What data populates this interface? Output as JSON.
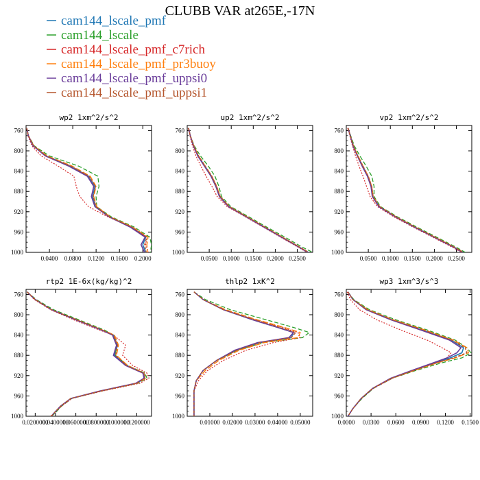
{
  "figure_title": "CLUBB VAR at265E,-17N",
  "legend": [
    {
      "label": "cam144_lscale_pmf",
      "color": "#1f77b4"
    },
    {
      "label": "cam144_lscale",
      "color": "#2ca02c"
    },
    {
      "label": "cam144_lscale_pmf_c7rich",
      "color": "#d62728"
    },
    {
      "label": "cam144_lscale_pmf_pr3buoy",
      "color": "#ff7f0e"
    },
    {
      "label": "cam144_lscale_pmf_uppsi0",
      "color": "#6a3d9a"
    },
    {
      "label": "cam144_lscale_pmf_uppsi1",
      "color": "#b5562d"
    }
  ],
  "chart_data": [
    {
      "type": "line",
      "title": "wp2   1xm^2/s^2",
      "xlim": [
        0,
        0.215
      ],
      "ylim": [
        1000,
        750
      ],
      "xticks": [
        0.04,
        0.08,
        0.12,
        0.16,
        0.2
      ],
      "xtick_labels": [
        "0.0400",
        "0.0800",
        "0.1200",
        "0.1600",
        "0.2000"
      ],
      "yticks": [
        760,
        800,
        840,
        880,
        920,
        960,
        1000
      ],
      "y": [
        755,
        770,
        790,
        810,
        830,
        850,
        870,
        890,
        910,
        930,
        950,
        970,
        985,
        1000
      ],
      "series": [
        {
          "name": "cam144_lscale_pmf",
          "values": [
            0.001,
            0.004,
            0.012,
            0.034,
            0.075,
            0.107,
            0.118,
            0.114,
            0.119,
            0.143,
            0.18,
            0.205,
            0.2,
            0.205
          ]
        },
        {
          "name": "cam144_lscale",
          "values": [
            0.001,
            0.004,
            0.014,
            0.04,
            0.09,
            0.123,
            0.125,
            0.12,
            0.121,
            0.146,
            0.185,
            0.212,
            0.215,
            0.213
          ]
        },
        {
          "name": "cam144_lscale_pmf_c7rich",
          "values": [
            0.001,
            0.003,
            0.01,
            0.026,
            0.055,
            0.082,
            0.086,
            0.092,
            0.107,
            0.14,
            0.18,
            0.207,
            0.205,
            0.21
          ]
        },
        {
          "name": "cam144_lscale_pmf_pr3buoy",
          "values": [
            0.001,
            0.004,
            0.013,
            0.036,
            0.079,
            0.11,
            0.12,
            0.116,
            0.121,
            0.144,
            0.182,
            0.209,
            0.207,
            0.208
          ]
        },
        {
          "name": "cam144_lscale_pmf_uppsi0",
          "values": [
            0.001,
            0.004,
            0.012,
            0.033,
            0.073,
            0.105,
            0.116,
            0.112,
            0.118,
            0.142,
            0.178,
            0.204,
            0.197,
            0.203
          ]
        },
        {
          "name": "cam144_lscale_pmf_uppsi1",
          "values": [
            0.001,
            0.004,
            0.013,
            0.035,
            0.077,
            0.108,
            0.119,
            0.115,
            0.12,
            0.143,
            0.181,
            0.207,
            0.203,
            0.206
          ]
        }
      ]
    },
    {
      "type": "line",
      "title": "up2   1xm^2/s^2",
      "xlim": [
        0,
        0.285
      ],
      "ylim": [
        1000,
        750
      ],
      "xticks": [
        0.05,
        0.1,
        0.15,
        0.2,
        0.25
      ],
      "xtick_labels": [
        "0.0500",
        "0.1000",
        "0.1500",
        "0.2000",
        "0.2500"
      ],
      "yticks": [
        760,
        800,
        840,
        880,
        920,
        960,
        1000
      ],
      "y": [
        755,
        770,
        790,
        810,
        830,
        850,
        870,
        890,
        910,
        930,
        950,
        970,
        990,
        1000
      ],
      "series": [
        {
          "name": "cam144_lscale_pmf",
          "values": [
            0.003,
            0.007,
            0.014,
            0.025,
            0.04,
            0.055,
            0.066,
            0.074,
            0.095,
            0.135,
            0.175,
            0.215,
            0.255,
            0.275
          ]
        },
        {
          "name": "cam144_lscale",
          "values": [
            0.003,
            0.007,
            0.016,
            0.03,
            0.048,
            0.063,
            0.072,
            0.078,
            0.099,
            0.14,
            0.18,
            0.222,
            0.262,
            0.285
          ]
        },
        {
          "name": "cam144_lscale_pmf_c7rich",
          "values": [
            0.002,
            0.006,
            0.012,
            0.02,
            0.031,
            0.043,
            0.056,
            0.068,
            0.091,
            0.132,
            0.172,
            0.212,
            0.252,
            0.272
          ]
        },
        {
          "name": "cam144_lscale_pmf_pr3buoy",
          "values": [
            0.003,
            0.007,
            0.015,
            0.026,
            0.041,
            0.056,
            0.067,
            0.075,
            0.096,
            0.136,
            0.176,
            0.216,
            0.256,
            0.276
          ]
        },
        {
          "name": "cam144_lscale_pmf_uppsi0",
          "values": [
            0.003,
            0.007,
            0.014,
            0.024,
            0.039,
            0.054,
            0.065,
            0.073,
            0.094,
            0.134,
            0.174,
            0.214,
            0.254,
            0.274
          ]
        },
        {
          "name": "cam144_lscale_pmf_uppsi1",
          "values": [
            0.003,
            0.007,
            0.015,
            0.026,
            0.041,
            0.056,
            0.067,
            0.075,
            0.096,
            0.136,
            0.176,
            0.216,
            0.256,
            0.276
          ]
        }
      ]
    },
    {
      "type": "line",
      "title": "vp2   1xm^2/s^2",
      "xlim": [
        0,
        0.285
      ],
      "ylim": [
        1000,
        750
      ],
      "xticks": [
        0.05,
        0.1,
        0.15,
        0.2,
        0.25
      ],
      "xtick_labels": [
        "0.0500",
        "0.1000",
        "0.1500",
        "0.2000",
        "0.2500"
      ],
      "yticks": [
        760,
        800,
        840,
        880,
        920,
        960,
        1000
      ],
      "y": [
        755,
        770,
        790,
        810,
        830,
        850,
        870,
        890,
        910,
        930,
        950,
        970,
        990,
        1000
      ],
      "series": [
        {
          "name": "cam144_lscale_pmf",
          "values": [
            0.004,
            0.009,
            0.016,
            0.026,
            0.037,
            0.049,
            0.057,
            0.06,
            0.075,
            0.112,
            0.155,
            0.2,
            0.245,
            0.265
          ]
        },
        {
          "name": "cam144_lscale",
          "values": [
            0.004,
            0.01,
            0.018,
            0.031,
            0.045,
            0.058,
            0.063,
            0.063,
            0.078,
            0.116,
            0.16,
            0.205,
            0.25,
            0.27
          ]
        },
        {
          "name": "cam144_lscale_pmf_c7rich",
          "values": [
            0.003,
            0.008,
            0.014,
            0.021,
            0.029,
            0.038,
            0.046,
            0.054,
            0.071,
            0.108,
            0.151,
            0.196,
            0.241,
            0.262
          ]
        },
        {
          "name": "cam144_lscale_pmf_pr3buoy",
          "values": [
            0.004,
            0.009,
            0.016,
            0.027,
            0.038,
            0.05,
            0.058,
            0.061,
            0.076,
            0.113,
            0.156,
            0.201,
            0.246,
            0.266
          ]
        },
        {
          "name": "cam144_lscale_pmf_uppsi0",
          "values": [
            0.004,
            0.009,
            0.015,
            0.025,
            0.036,
            0.048,
            0.056,
            0.059,
            0.074,
            0.111,
            0.154,
            0.199,
            0.244,
            0.264
          ]
        },
        {
          "name": "cam144_lscale_pmf_uppsi1",
          "values": [
            0.004,
            0.009,
            0.016,
            0.026,
            0.038,
            0.05,
            0.058,
            0.061,
            0.076,
            0.113,
            0.156,
            0.201,
            0.246,
            0.266
          ]
        }
      ]
    },
    {
      "type": "line",
      "title": "rtp2   1E-6x(kg/kg)^2",
      "xlim": [
        0.011,
        0.1345
      ],
      "ylim": [
        1000,
        750
      ],
      "xticks": [
        0.02,
        0.04,
        0.06,
        0.08,
        0.1,
        0.12
      ],
      "xtick_labels": [
        "0.0200000",
        "0.0400000",
        "0.0600000",
        "0.0800000",
        "0.1000000",
        "0.1200000"
      ],
      "yticks": [
        760,
        800,
        840,
        880,
        920,
        960,
        1000
      ],
      "y": [
        755,
        770,
        790,
        810,
        830,
        840,
        860,
        880,
        900,
        915,
        925,
        935,
        950,
        965,
        980,
        995,
        1000
      ],
      "series": [
        {
          "name": "cam144_lscale_pmf",
          "values": [
            0.012,
            0.02,
            0.036,
            0.06,
            0.085,
            0.097,
            0.101,
            0.098,
            0.11,
            0.127,
            0.128,
            0.12,
            0.085,
            0.055,
            0.045,
            0.038,
            0.036
          ]
        },
        {
          "name": "cam144_lscale",
          "values": [
            0.012,
            0.021,
            0.038,
            0.063,
            0.088,
            0.097,
            0.1,
            0.099,
            0.111,
            0.128,
            0.13,
            0.121,
            0.086,
            0.056,
            0.046,
            0.039,
            0.036
          ]
        },
        {
          "name": "cam144_lscale_pmf_c7rich",
          "values": [
            0.012,
            0.019,
            0.035,
            0.058,
            0.083,
            0.097,
            0.109,
            0.106,
            0.116,
            0.13,
            0.132,
            0.123,
            0.087,
            0.056,
            0.046,
            0.038,
            0.035
          ]
        },
        {
          "name": "cam144_lscale_pmf_pr3buoy",
          "values": [
            0.012,
            0.02,
            0.036,
            0.061,
            0.086,
            0.098,
            0.102,
            0.1,
            0.111,
            0.127,
            0.129,
            0.12,
            0.085,
            0.055,
            0.045,
            0.038,
            0.036
          ]
        },
        {
          "name": "cam144_lscale_pmf_uppsi0",
          "values": [
            0.012,
            0.02,
            0.036,
            0.06,
            0.085,
            0.096,
            0.1,
            0.097,
            0.109,
            0.126,
            0.127,
            0.119,
            0.084,
            0.055,
            0.045,
            0.038,
            0.036
          ]
        },
        {
          "name": "cam144_lscale_pmf_uppsi1",
          "values": [
            0.012,
            0.02,
            0.036,
            0.061,
            0.086,
            0.097,
            0.101,
            0.099,
            0.11,
            0.127,
            0.128,
            0.12,
            0.085,
            0.055,
            0.045,
            0.038,
            0.036
          ]
        }
      ]
    },
    {
      "type": "line",
      "title": "thlp2   1xK^2",
      "xlim": [
        0,
        0.0555
      ],
      "ylim": [
        1000,
        750
      ],
      "xticks": [
        0.01,
        0.02,
        0.03,
        0.04,
        0.05
      ],
      "xtick_labels": [
        "0.01000",
        "0.02000",
        "0.03000",
        "0.04000",
        "0.05000"
      ],
      "yticks": [
        760,
        800,
        840,
        880,
        920,
        960,
        1000
      ],
      "y": [
        755,
        770,
        790,
        810,
        825,
        835,
        845,
        855,
        870,
        890,
        910,
        930,
        950,
        970,
        985,
        1000
      ],
      "series": [
        {
          "name": "cam144_lscale_pmf",
          "values": [
            0.003,
            0.007,
            0.016,
            0.029,
            0.04,
            0.047,
            0.046,
            0.032,
            0.022,
            0.013,
            0.007,
            0.004,
            0.003,
            0.003,
            0.003,
            0.003
          ]
        },
        {
          "name": "cam144_lscale",
          "values": [
            0.003,
            0.008,
            0.019,
            0.035,
            0.047,
            0.054,
            0.051,
            0.034,
            0.022,
            0.013,
            0.007,
            0.004,
            0.003,
            0.003,
            0.003,
            0.003
          ]
        },
        {
          "name": "cam144_lscale_pmf_c7rich",
          "values": [
            0.003,
            0.007,
            0.016,
            0.03,
            0.042,
            0.049,
            0.05,
            0.038,
            0.026,
            0.016,
            0.009,
            0.005,
            0.003,
            0.003,
            0.003,
            0.003
          ]
        },
        {
          "name": "cam144_lscale_pmf_pr3buoy",
          "values": [
            0.003,
            0.007,
            0.017,
            0.031,
            0.043,
            0.05,
            0.049,
            0.034,
            0.023,
            0.014,
            0.008,
            0.004,
            0.003,
            0.003,
            0.003,
            0.003
          ]
        },
        {
          "name": "cam144_lscale_pmf_uppsi0",
          "values": [
            0.003,
            0.007,
            0.016,
            0.029,
            0.04,
            0.047,
            0.045,
            0.031,
            0.021,
            0.013,
            0.007,
            0.004,
            0.003,
            0.003,
            0.003,
            0.003
          ]
        },
        {
          "name": "cam144_lscale_pmf_uppsi1",
          "values": [
            0.003,
            0.007,
            0.016,
            0.03,
            0.041,
            0.048,
            0.046,
            0.032,
            0.022,
            0.013,
            0.007,
            0.004,
            0.003,
            0.003,
            0.003,
            0.003
          ]
        }
      ]
    },
    {
      "type": "line",
      "title": "wp3   1xm^3/s^3",
      "xlim": [
        0,
        0.152
      ],
      "ylim": [
        1000,
        750
      ],
      "xticks": [
        0,
        0.03,
        0.06,
        0.09,
        0.12,
        0.15
      ],
      "xtick_labels": [
        "0.0000",
        "0.0300",
        "0.0600",
        "0.0900",
        "0.1200",
        "0.1500"
      ],
      "yticks": [
        760,
        800,
        840,
        880,
        920,
        960,
        1000
      ],
      "y": [
        755,
        770,
        790,
        810,
        830,
        850,
        865,
        875,
        885,
        895,
        910,
        925,
        945,
        965,
        985,
        1000
      ],
      "series": [
        {
          "name": "cam144_lscale_pmf",
          "values": [
            0.002,
            0.008,
            0.025,
            0.055,
            0.092,
            0.127,
            0.142,
            0.14,
            0.126,
            0.107,
            0.08,
            0.055,
            0.032,
            0.018,
            0.008,
            0.002
          ]
        },
        {
          "name": "cam144_lscale",
          "values": [
            0.002,
            0.009,
            0.028,
            0.06,
            0.098,
            0.132,
            0.146,
            0.151,
            0.14,
            0.115,
            0.084,
            0.056,
            0.033,
            0.019,
            0.008,
            0.002
          ]
        },
        {
          "name": "cam144_lscale_pmf_c7rich",
          "values": [
            0.001,
            0.005,
            0.016,
            0.037,
            0.066,
            0.098,
            0.116,
            0.127,
            0.122,
            0.108,
            0.082,
            0.056,
            0.033,
            0.018,
            0.008,
            0.002
          ]
        },
        {
          "name": "cam144_lscale_pmf_pr3buoy",
          "values": [
            0.002,
            0.008,
            0.026,
            0.057,
            0.095,
            0.13,
            0.146,
            0.148,
            0.132,
            0.11,
            0.082,
            0.055,
            0.032,
            0.018,
            0.008,
            0.002
          ]
        },
        {
          "name": "cam144_lscale_pmf_uppsi0",
          "values": [
            0.002,
            0.008,
            0.024,
            0.054,
            0.09,
            0.125,
            0.139,
            0.134,
            0.122,
            0.105,
            0.079,
            0.054,
            0.032,
            0.018,
            0.008,
            0.002
          ]
        },
        {
          "name": "cam144_lscale_pmf_uppsi1",
          "values": [
            0.002,
            0.008,
            0.025,
            0.056,
            0.093,
            0.128,
            0.144,
            0.146,
            0.13,
            0.109,
            0.081,
            0.055,
            0.032,
            0.018,
            0.008,
            0.002
          ]
        }
      ]
    }
  ]
}
